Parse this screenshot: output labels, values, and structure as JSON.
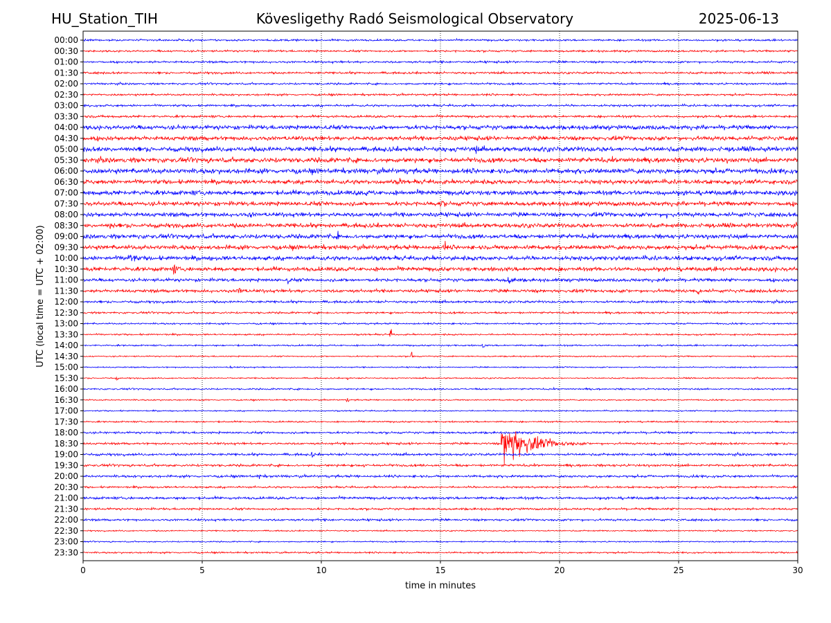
{
  "header": {
    "station": "HU_Station_TIH",
    "observatory": "Kövesligethy Radó Seismological Observatory",
    "date": "2025-06-13"
  },
  "chart_data": {
    "type": "line",
    "title": "Kövesligethy Radó Seismological Observatory",
    "xlabel": "time in minutes",
    "ylabel": "UTC (local time = UTC + 02:00)",
    "xlim": [
      0,
      30
    ],
    "x_ticks": [
      0,
      5,
      10,
      15,
      20,
      25,
      30
    ],
    "grid": "vertical dotted lines at each x tick",
    "series_colors": [
      "#0000ff",
      "#ff0000"
    ],
    "rows": [
      "00:00",
      "00:30",
      "01:00",
      "01:30",
      "02:00",
      "02:30",
      "03:00",
      "03:30",
      "04:00",
      "04:30",
      "05:00",
      "05:30",
      "06:00",
      "06:30",
      "07:00",
      "07:30",
      "08:00",
      "08:30",
      "09:00",
      "09:30",
      "10:00",
      "10:30",
      "11:00",
      "11:30",
      "12:00",
      "12:30",
      "13:00",
      "13:30",
      "14:00",
      "14:30",
      "15:00",
      "15:30",
      "16:00",
      "16:30",
      "17:00",
      "17:30",
      "18:00",
      "18:30",
      "19:00",
      "19:30",
      "20:00",
      "20:30",
      "21:00",
      "21:30",
      "22:00",
      "22:30",
      "23:00",
      "23:30"
    ],
    "row_noise_amplitude": [
      0.18,
      0.18,
      0.2,
      0.2,
      0.18,
      0.18,
      0.2,
      0.22,
      0.4,
      0.4,
      0.45,
      0.45,
      0.45,
      0.4,
      0.45,
      0.4,
      0.4,
      0.4,
      0.4,
      0.4,
      0.4,
      0.4,
      0.3,
      0.3,
      0.22,
      0.18,
      0.15,
      0.15,
      0.15,
      0.12,
      0.12,
      0.12,
      0.15,
      0.12,
      0.12,
      0.15,
      0.2,
      0.2,
      0.22,
      0.22,
      0.22,
      0.18,
      0.25,
      0.2,
      0.2,
      0.12,
      0.12,
      0.15
    ],
    "events": [
      {
        "row": "05:00",
        "minute": 16.5,
        "amplitude": 1.6,
        "duration": 0.15
      },
      {
        "row": "06:00",
        "minute": 11.5,
        "amplitude": 1.2,
        "duration": 0.3
      },
      {
        "row": "06:30",
        "minute": 13.3,
        "amplitude": 1.0,
        "duration": 0.2
      },
      {
        "row": "07:00",
        "minute": 11.9,
        "amplitude": 1.0,
        "duration": 0.2
      },
      {
        "row": "07:30",
        "minute": 15.0,
        "amplitude": 0.9,
        "duration": 1.0
      },
      {
        "row": "08:00",
        "minute": 7.0,
        "amplitude": 0.9,
        "duration": 0.8
      },
      {
        "row": "08:00",
        "minute": 24.5,
        "amplitude": 1.0,
        "duration": 0.8
      },
      {
        "row": "08:30",
        "minute": 1.1,
        "amplitude": 1.2,
        "duration": 0.6
      },
      {
        "row": "09:00",
        "minute": 10.7,
        "amplitude": 1.0,
        "duration": 0.2
      },
      {
        "row": "09:30",
        "minute": 12.2,
        "amplitude": 1.0,
        "duration": 0.2
      },
      {
        "row": "09:30",
        "minute": 15.2,
        "amplitude": 1.8,
        "duration": 0.15
      },
      {
        "row": "10:00",
        "minute": 1.9,
        "amplitude": 1.4,
        "duration": 1.2
      },
      {
        "row": "10:30",
        "minute": 3.8,
        "amplitude": 1.2,
        "duration": 0.6
      },
      {
        "row": "10:30",
        "minute": 27.6,
        "amplitude": 1.0,
        "duration": 0.6
      },
      {
        "row": "11:00",
        "minute": 8.6,
        "amplitude": 0.9,
        "duration": 0.3
      },
      {
        "row": "11:00",
        "minute": 17.8,
        "amplitude": 1.1,
        "duration": 1.4
      },
      {
        "row": "11:30",
        "minute": 6.5,
        "amplitude": 1.2,
        "duration": 0.8
      },
      {
        "row": "11:30",
        "minute": 25.8,
        "amplitude": 1.0,
        "duration": 0.8
      },
      {
        "row": "13:30",
        "minute": 12.9,
        "amplitude": 1.6,
        "duration": 0.2
      },
      {
        "row": "14:00",
        "minute": 16.8,
        "amplitude": 1.2,
        "duration": 0.15
      },
      {
        "row": "14:30",
        "minute": 13.8,
        "amplitude": 1.6,
        "duration": 0.15
      },
      {
        "row": "15:00",
        "minute": 6.2,
        "amplitude": 0.9,
        "duration": 0.15
      },
      {
        "row": "15:30",
        "minute": 1.4,
        "amplitude": 0.6,
        "duration": 0.2
      },
      {
        "row": "15:30",
        "minute": 11.1,
        "amplitude": 0.6,
        "duration": 0.1
      },
      {
        "row": "16:30",
        "minute": 11.1,
        "amplitude": 0.9,
        "duration": 0.1
      },
      {
        "row": "18:30",
        "minute": 17.6,
        "amplitude": 4.5,
        "duration": 3.5
      },
      {
        "row": "19:00",
        "minute": 9.6,
        "amplitude": 0.8,
        "duration": 0.3
      },
      {
        "row": "19:30",
        "minute": 11.8,
        "amplitude": 1.1,
        "duration": 0.2
      },
      {
        "row": "20:00",
        "minute": 7.4,
        "amplitude": 0.9,
        "duration": 0.2
      }
    ]
  }
}
